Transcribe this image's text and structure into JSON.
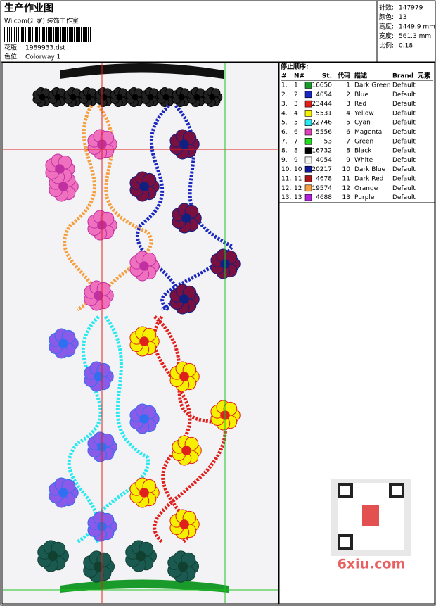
{
  "header": {
    "title": "生产作业图",
    "company": "Wilcom(汇家) 装饰工作室",
    "design_label": "花版:",
    "design": "1989933.dst",
    "colorway_label": "色位:",
    "colorway": "Colorway 1"
  },
  "stats": [
    {
      "label": "针数:",
      "value": "147979"
    },
    {
      "label": "颜色:",
      "value": "13"
    },
    {
      "label": "高度:",
      "value": "1449.9 mm"
    },
    {
      "label": "宽度:",
      "value": "561.3 mm"
    },
    {
      "label": "比例:",
      "value": "0.18"
    }
  ],
  "table": {
    "title": "停止顺序:",
    "columns": [
      "#",
      "N#",
      "St.",
      "代码",
      "描述",
      "Brand",
      "元素"
    ],
    "rows": [
      {
        "index": "1.",
        "n": "1",
        "color": "#1a9a2a",
        "st": "16650",
        "code": "1",
        "desc": "Dark Green",
        "brand": "Default"
      },
      {
        "index": "2.",
        "n": "2",
        "color": "#1a28c0",
        "st": "4054",
        "code": "2",
        "desc": "Blue",
        "brand": "Default"
      },
      {
        "index": "3.",
        "n": "3",
        "color": "#e0201c",
        "st": "23444",
        "code": "3",
        "desc": "Red",
        "brand": "Default"
      },
      {
        "index": "4.",
        "n": "4",
        "color": "#f5f000",
        "st": "5531",
        "code": "4",
        "desc": "Yellow",
        "brand": "Default"
      },
      {
        "index": "5.",
        "n": "5",
        "color": "#28e8f0",
        "st": "22746",
        "code": "5",
        "desc": "Cyan",
        "brand": "Default"
      },
      {
        "index": "6.",
        "n": "6",
        "color": "#e040b8",
        "st": "5556",
        "code": "6",
        "desc": "Magenta",
        "brand": "Default"
      },
      {
        "index": "7.",
        "n": "7",
        "color": "#22dd22",
        "st": "53",
        "code": "7",
        "desc": "Green",
        "brand": "Default"
      },
      {
        "index": "8.",
        "n": "8",
        "color": "#000000",
        "st": "16732",
        "code": "8",
        "desc": "Black",
        "brand": "Default"
      },
      {
        "index": "9.",
        "n": "9",
        "color": "#f4f4f0",
        "st": "4054",
        "code": "9",
        "desc": "White",
        "brand": "Default"
      },
      {
        "index": "10.",
        "n": "10",
        "color": "#10189a",
        "st": "20217",
        "code": "10",
        "desc": "Dark Blue",
        "brand": "Default"
      },
      {
        "index": "11.",
        "n": "11",
        "color": "#b01818",
        "st": "4678",
        "code": "11",
        "desc": "Dark Red",
        "brand": "Default"
      },
      {
        "index": "12.",
        "n": "12",
        "color": "#f5a040",
        "st": "19574",
        "code": "12",
        "desc": "Orange",
        "brand": "Default"
      },
      {
        "index": "13.",
        "n": "13",
        "color": "#b020d8",
        "st": "4688",
        "code": "13",
        "desc": "Purple",
        "brand": "Default"
      }
    ]
  },
  "watermark": "6xiu.com"
}
